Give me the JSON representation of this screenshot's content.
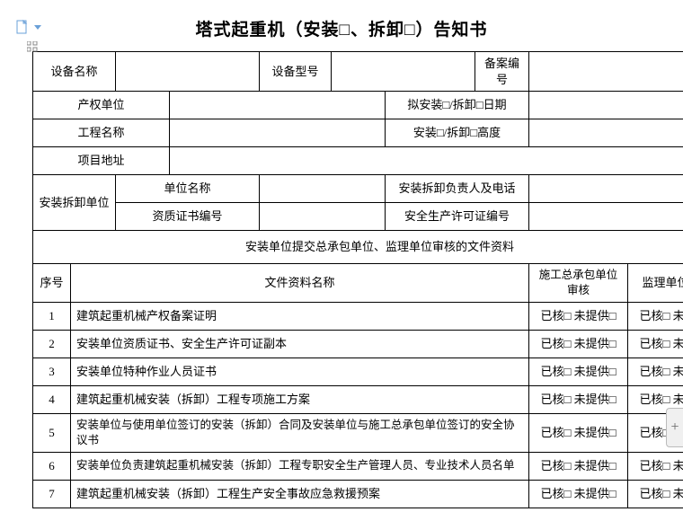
{
  "title": "塔式起重机（安装□、拆卸□）告知书",
  "header": {
    "device_name_lbl": "设备名称",
    "device_model_lbl": "设备型号",
    "record_no_lbl": "备案编号",
    "owner_unit_lbl": "产权单位",
    "plan_date_lbl": "拟安装□/拆卸□日期",
    "project_name_lbl": "工程名称",
    "install_height_lbl": "安装□/拆卸□高度",
    "project_addr_lbl": "项目地址",
    "install_unit_lbl": "安装拆卸单位",
    "unit_name_lbl": "单位名称",
    "person_phone_lbl": "安装拆卸负责人及电话",
    "cert_no_lbl": "资质证书编号",
    "safety_permit_lbl": "安全生产许可证编号"
  },
  "section_title": "安装单位提交总承包单位、监理单位审核的文件资料",
  "columns": {
    "seq": "序号",
    "doc_name": "文件资料名称",
    "gc_review": "施工总承包单位审核",
    "supervisor_review": "监理单位审核"
  },
  "check_text": "已核□ 未提供□",
  "rows": [
    {
      "n": "1",
      "name": "建筑起重机械产权备案证明"
    },
    {
      "n": "2",
      "name": "安装单位资质证书、安全生产许可证副本"
    },
    {
      "n": "3",
      "name": "安装单位特种作业人员证书"
    },
    {
      "n": "4",
      "name": "建筑起重机械安装（拆卸）工程专项施工方案"
    },
    {
      "n": "5",
      "name": "安装单位与使用单位签订的安装（拆卸）合同及安装单位与施工总承包单位签订的安全协议书"
    },
    {
      "n": "6",
      "name": "安装单位负责建筑起重机械安装（拆卸）工程专职安全生产管理人员、专业技术人员名单"
    },
    {
      "n": "7",
      "name": "建筑起重机械安装（拆卸）工程生产安全事故应急救援预案"
    }
  ],
  "side_glyph": "+"
}
